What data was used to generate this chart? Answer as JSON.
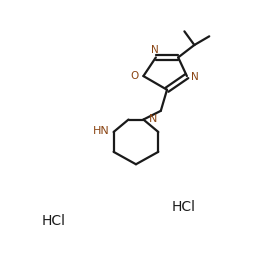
{
  "background_color": "#ffffff",
  "line_color": "#1a1a1a",
  "N_color": "#8B4513",
  "O_color": "#8B4513",
  "line_width": 1.6,
  "figsize": [
    2.57,
    2.54
  ],
  "dpi": 100,
  "hcl1_text": "HCl",
  "hcl2_text": "HCl",
  "hn_text": "HN",
  "n_text": "N",
  "o_text": "O",
  "n1_text": "N",
  "n2_text": "N"
}
